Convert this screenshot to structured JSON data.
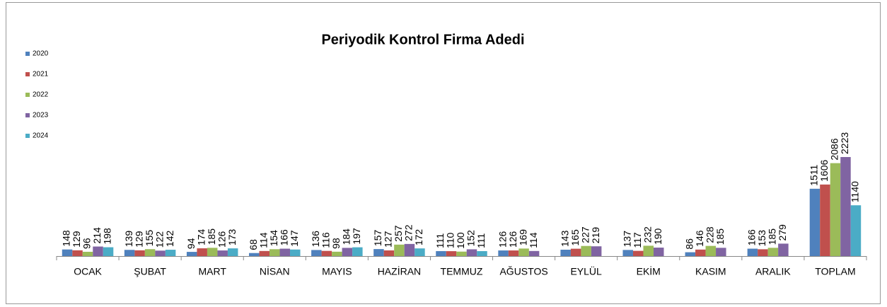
{
  "chart_data": {
    "type": "bar",
    "title": "Periyodik Kontrol Firma  Adedi",
    "categories": [
      "OCAK",
      "ŞUBAT",
      "MART",
      "NİSAN",
      "MAYIS",
      "HAZİRAN",
      "TEMMUZ",
      "AĞUSTOS",
      "EYLÜL",
      "EKİM",
      "KASIM",
      "ARALIK",
      "TOPLAM"
    ],
    "series": [
      {
        "name": "2020",
        "color": "#4f81bd",
        "values": [
          148,
          139,
          94,
          68,
          136,
          157,
          111,
          126,
          143,
          137,
          86,
          166,
          1511
        ]
      },
      {
        "name": "2021",
        "color": "#c0504d",
        "values": [
          129,
          129,
          174,
          114,
          116,
          127,
          110,
          126,
          165,
          117,
          146,
          153,
          1606
        ]
      },
      {
        "name": "2022",
        "color": "#9bbb59",
        "values": [
          96,
          155,
          185,
          154,
          98,
          257,
          100,
          169,
          227,
          232,
          228,
          185,
          2086
        ]
      },
      {
        "name": "2023",
        "color": "#8064a2",
        "values": [
          214,
          122,
          126,
          166,
          184,
          272,
          152,
          114,
          219,
          190,
          185,
          279,
          2223
        ]
      },
      {
        "name": "2024",
        "color": "#4bacc6",
        "values": [
          198,
          142,
          173,
          147,
          197,
          172,
          111,
          null,
          null,
          null,
          null,
          null,
          1140
        ]
      }
    ],
    "legend": "left"
  }
}
